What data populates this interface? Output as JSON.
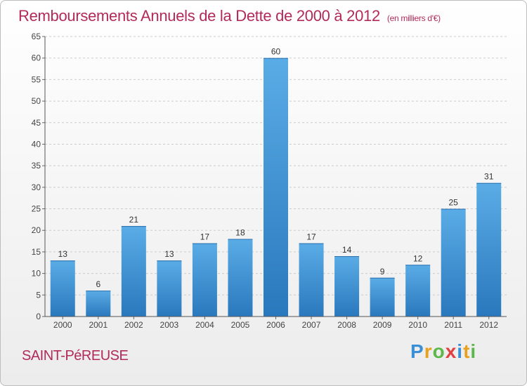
{
  "chart_data": {
    "type": "bar",
    "title": "Remboursements Annuels de la Dette de 2000 à 2012",
    "subtitle": "(en milliers d'€)",
    "categories": [
      "2000",
      "2001",
      "2002",
      "2003",
      "2004",
      "2005",
      "2006",
      "2007",
      "2008",
      "2009",
      "2010",
      "2011",
      "2012"
    ],
    "values": [
      13,
      6,
      21,
      13,
      17,
      18,
      60,
      17,
      14,
      9,
      12,
      25,
      31
    ],
    "ylim": [
      0,
      65
    ],
    "yticks": [
      0,
      5,
      10,
      15,
      20,
      25,
      30,
      35,
      40,
      45,
      50,
      55,
      60,
      65
    ],
    "grid": true,
    "xlabel": "",
    "ylabel": ""
  },
  "commune": "SAINT-PéREUSE",
  "logo": {
    "letters": [
      {
        "ch": "P",
        "color": "#3a8fd6"
      },
      {
        "ch": "r",
        "color": "#e8a020"
      },
      {
        "ch": "o",
        "color": "#5cb84a"
      },
      {
        "ch": "x",
        "color": "#e04040"
      },
      {
        "ch": "i",
        "color": "#3a8fd6"
      },
      {
        "ch": "t",
        "color": "#e8a020"
      },
      {
        "ch": "i",
        "color": "#5cb84a"
      }
    ]
  },
  "colors": {
    "bar_top": "#5aace6",
    "bar_bottom": "#2a78bd",
    "title": "#b22a5a",
    "grid": "#cccccc"
  }
}
